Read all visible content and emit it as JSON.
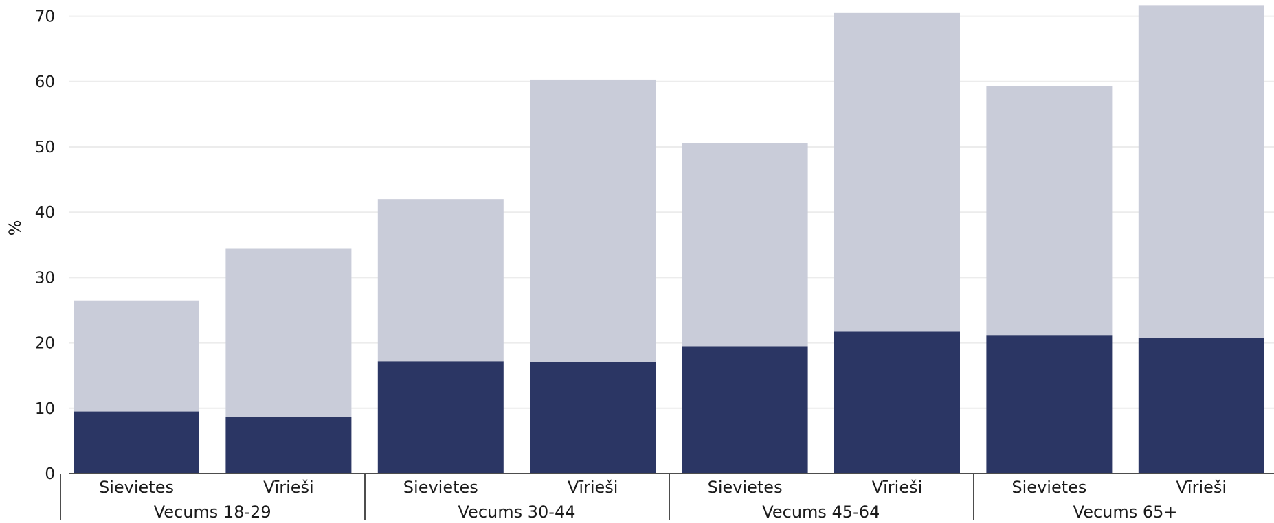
{
  "chart_data": {
    "type": "bar",
    "stacked": true,
    "title": "",
    "xlabel": "",
    "ylabel": "%",
    "ylim": [
      0,
      72
    ],
    "yticks": [
      0,
      10,
      20,
      30,
      40,
      50,
      60,
      70
    ],
    "grid": true,
    "legend": "none",
    "groups": [
      "Vecums 18-29",
      "Vecums 30-44",
      "Vecums 45-64",
      "Vecums 65+"
    ],
    "categories": [
      "Sievietes",
      "Vīrieši",
      "Sievietes",
      "Vīrieši",
      "Sievietes",
      "Vīrieši",
      "Sievietes",
      "Vīrieši"
    ],
    "series": [
      {
        "values": [
          9.5,
          8.7,
          17.2,
          17.1,
          19.5,
          21.8,
          21.2,
          20.8
        ],
        "color": "#2b3664"
      },
      {
        "values": [
          17.0,
          25.7,
          24.8,
          43.2,
          31.1,
          48.7,
          38.1,
          50.8
        ],
        "color": "#c9ccd9"
      }
    ],
    "colors": {
      "grid": "#ececec",
      "axis": "#4d4d4d",
      "text": "#1a1a1a"
    }
  }
}
